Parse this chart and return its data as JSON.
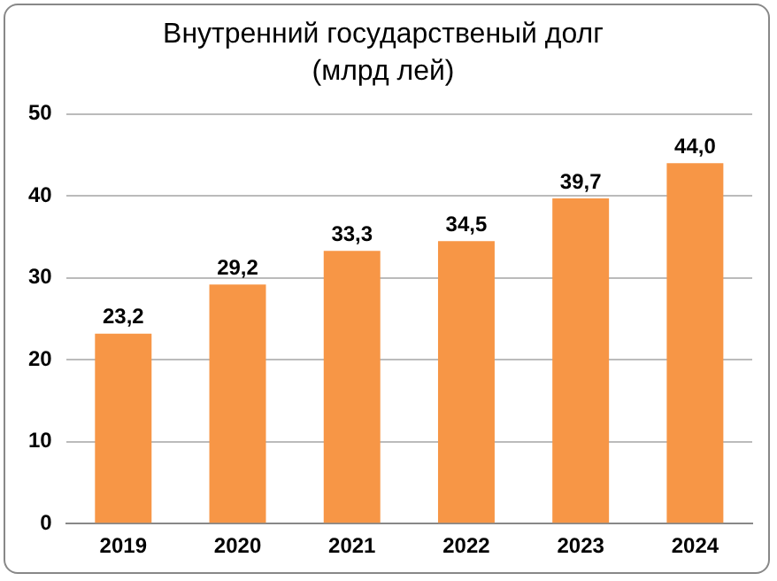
{
  "chart_data": {
    "type": "bar",
    "title": "Внутренний государственый долг",
    "subtitle": "(млрд лей)",
    "categories": [
      "2019",
      "2020",
      "2021",
      "2022",
      "2023",
      "2024"
    ],
    "values": [
      23.2,
      29.2,
      33.3,
      34.5,
      39.7,
      44.0
    ],
    "value_labels": [
      "23,2",
      "29,2",
      "33,3",
      "34,5",
      "39,7",
      "44,0"
    ],
    "color": "#f79646",
    "ylim": [
      0,
      50
    ],
    "yticks": [
      0,
      10,
      20,
      30,
      40,
      50
    ],
    "grid": "y",
    "legend": false
  }
}
